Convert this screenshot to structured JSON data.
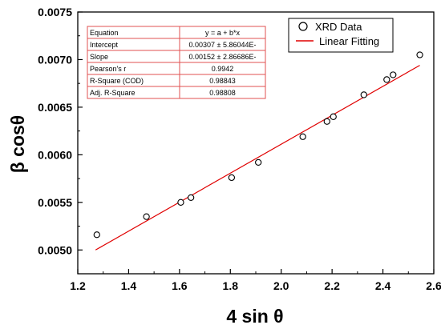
{
  "chart_data": {
    "type": "scatter",
    "xlabel": "4 sin θ",
    "ylabel": "β cosθ",
    "xlim": [
      1.2,
      2.6
    ],
    "ylim": [
      0.00475,
      0.0075
    ],
    "xticks": [
      1.2,
      1.4,
      1.6,
      1.8,
      2.0,
      2.2,
      2.4,
      2.6
    ],
    "xtick_labels": [
      "1.2",
      "1.4",
      "1.6",
      "1.8",
      "2.0",
      "2.2",
      "2.4",
      "2.6"
    ],
    "yticks": [
      0.005,
      0.0055,
      0.006,
      0.0065,
      0.007,
      0.0075
    ],
    "ytick_labels": [
      "0.0050",
      "0.0055",
      "0.0060",
      "0.0065",
      "0.0070",
      "0.0075"
    ],
    "grid": false,
    "legend_position": "top-right",
    "series": [
      {
        "name": "XRD Data",
        "type": "scatter",
        "marker": "open-circle",
        "color": "#000000",
        "x": [
          1.275,
          1.47,
          1.605,
          1.645,
          1.805,
          1.91,
          2.085,
          2.18,
          2.205,
          2.325,
          2.415,
          2.44,
          2.545
        ],
        "y": [
          0.00516,
          0.00535,
          0.0055,
          0.00555,
          0.00576,
          0.00592,
          0.00619,
          0.00635,
          0.0064,
          0.00663,
          0.00679,
          0.00684,
          0.00705
        ]
      },
      {
        "name": "Linear Fitting",
        "type": "line",
        "color": "#e00000",
        "x": [
          1.27,
          2.545
        ],
        "y": [
          0.005,
          0.00694
        ]
      }
    ],
    "stats_table": [
      [
        "Equation",
        "y = a + b*x"
      ],
      [
        "Intercept",
        "0.00307 ± 5.86044E-"
      ],
      [
        "Slope",
        "0.00152 ± 2.86686E-"
      ],
      [
        "Pearson's r",
        "0.9942"
      ],
      [
        "R-Square (COD)",
        "0.98843"
      ],
      [
        "Adj. R-Square",
        "0.98808"
      ]
    ],
    "colors": {
      "axis": "#000000",
      "fit_line": "#e00000",
      "table_border": "#e05050"
    }
  }
}
